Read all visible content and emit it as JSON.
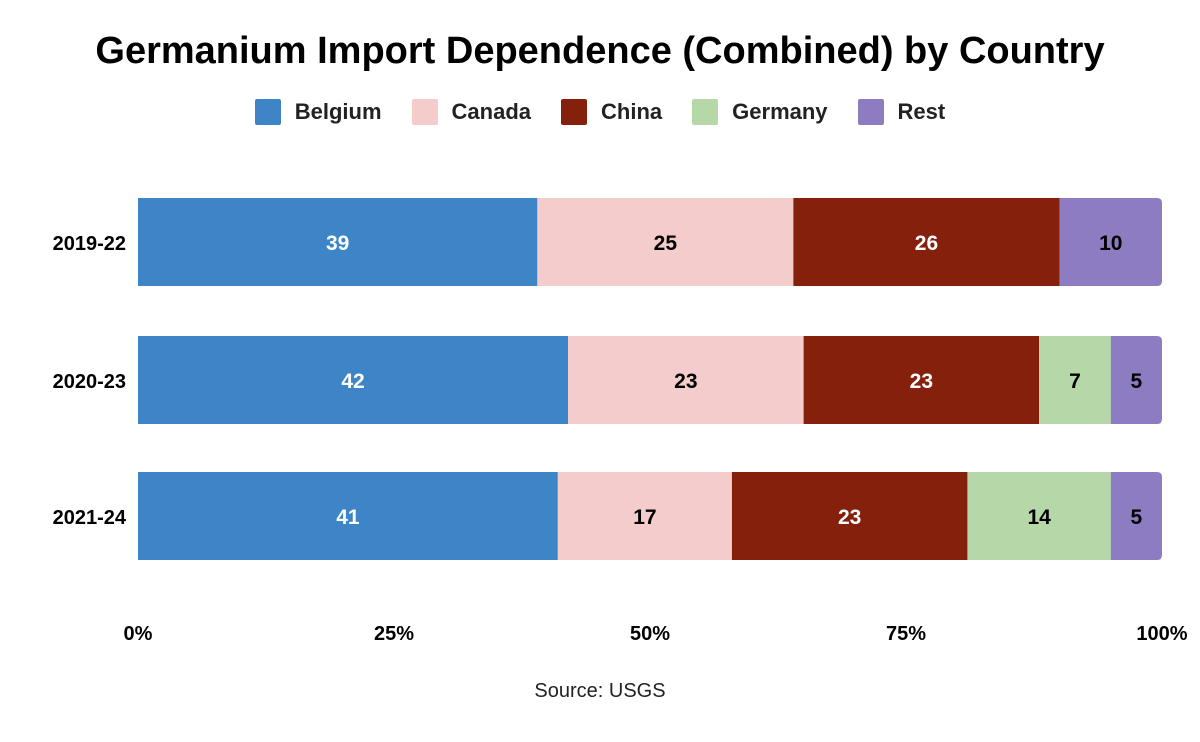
{
  "chart_data": {
    "type": "bar",
    "orientation": "horizontal",
    "stacked": "percent",
    "title": "Germanium Import Dependence (Combined) by Country",
    "categories": [
      "2019-22",
      "2020-23",
      "2021-24"
    ],
    "series": [
      {
        "name": "Belgium",
        "color": "#3d85c6",
        "label_color": "#ffffff",
        "values": [
          39,
          42,
          41
        ]
      },
      {
        "name": "Canada",
        "color": "#f4cccc",
        "label_color": "#000000",
        "values": [
          25,
          23,
          17
        ]
      },
      {
        "name": "China",
        "color": "#85200c",
        "label_color": "#ffffff",
        "values": [
          26,
          23,
          23
        ]
      },
      {
        "name": "Germany",
        "color": "#b6d7a8",
        "label_color": "#000000",
        "values": [
          0,
          7,
          14
        ]
      },
      {
        "name": "Rest",
        "color": "#8e7cc3",
        "label_color": "#000000",
        "values": [
          10,
          5,
          5
        ]
      }
    ],
    "xticks": [
      "0%",
      "25%",
      "50%",
      "75%",
      "100%"
    ],
    "xlim": [
      0,
      100
    ],
    "legend_position": "top",
    "grid": false,
    "source": "Source: USGS"
  }
}
